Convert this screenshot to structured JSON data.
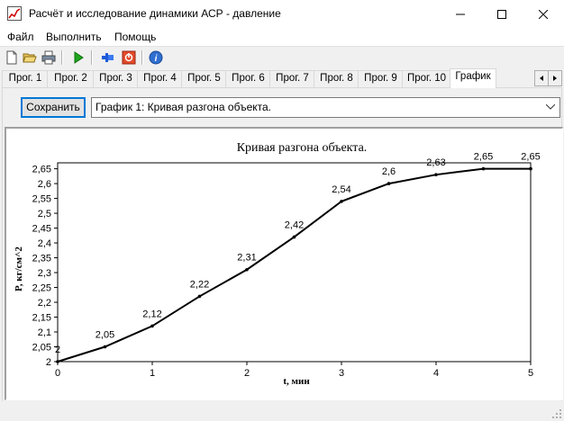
{
  "window": {
    "title": "Расчёт и исследование динамики АСР - давление"
  },
  "menu": [
    {
      "label": "Файл"
    },
    {
      "label": "Выполнить"
    },
    {
      "label": "Помощь"
    }
  ],
  "toolbar": {
    "icons": [
      "new-file-icon",
      "open-folder-icon",
      "print-icon",
      "run-icon",
      "pin-icon",
      "stop-icon",
      "info-icon"
    ]
  },
  "tabs": [
    {
      "label": "Прог. 1"
    },
    {
      "label": "Прог. 2"
    },
    {
      "label": "Прог. 3"
    },
    {
      "label": "Прог. 4"
    },
    {
      "label": "Прог. 5"
    },
    {
      "label": "Прог. 6"
    },
    {
      "label": "Прог. 7"
    },
    {
      "label": "Прог. 8"
    },
    {
      "label": "Прог. 9"
    },
    {
      "label": "Прог. 10"
    },
    {
      "label": "График",
      "active": true
    }
  ],
  "controls": {
    "save_label": "Сохранить",
    "graph_select_value": "График 1: Кривая разгона объекта."
  },
  "chart_data": {
    "type": "line",
    "title": "Кривая разгона объекта.",
    "xlabel": "t, мин",
    "ylabel": "P, кг/см^2",
    "xlim": [
      0,
      5
    ],
    "ylim": [
      2,
      2.67
    ],
    "xticks": [
      "0",
      "1",
      "2",
      "3",
      "4",
      "5"
    ],
    "yticks": [
      "2",
      "2,05",
      "2,1",
      "2,15",
      "2,2",
      "2,25",
      "2,3",
      "2,35",
      "2,4",
      "2,45",
      "2,5",
      "2,55",
      "2,6",
      "2,65"
    ],
    "x": [
      0,
      0.5,
      1,
      1.5,
      2,
      2.5,
      3,
      3.5,
      4,
      4.5,
      5
    ],
    "values": [
      2,
      2.05,
      2.12,
      2.22,
      2.31,
      2.42,
      2.54,
      2.6,
      2.63,
      2.65,
      2.65
    ],
    "point_labels": [
      "2",
      "2,05",
      "2,12",
      "2,22",
      "2,31",
      "2,42",
      "2,54",
      "2,6",
      "2,63",
      "2,65",
      "2,65"
    ],
    "line_color": "#000000",
    "grid": false
  }
}
